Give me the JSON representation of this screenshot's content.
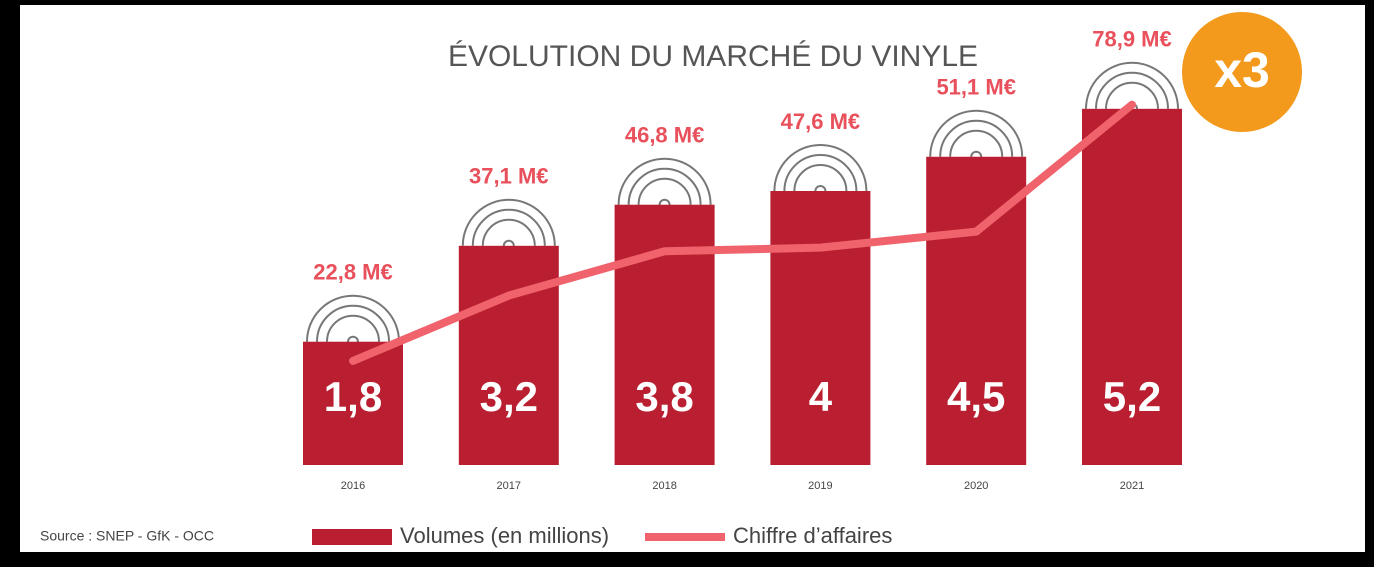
{
  "chart_data": {
    "type": "bar",
    "title": "ÉVOLUTION DU MARCHÉ DU VINYLE",
    "annotation": "x3",
    "source": "Source : SNEP - GfK - OCC",
    "categories": [
      "2016",
      "2017",
      "2018",
      "2019",
      "2020",
      "2021"
    ],
    "series": [
      {
        "name": "Volumes (en millions)",
        "type": "bar",
        "color": "#b91f30",
        "values": [
          1.8,
          3.2,
          3.8,
          4,
          4.5,
          5.2
        ],
        "value_labels": [
          "1,8",
          "3,2",
          "3,8",
          "4",
          "4,5",
          "5,2"
        ]
      },
      {
        "name": "Chiffre d’affaires",
        "type": "line",
        "axis": "y2",
        "color": "#f0636c",
        "values": [
          22.8,
          37.1,
          46.8,
          47.6,
          51.1,
          78.9
        ],
        "value_labels": [
          "22,8 M€",
          "37,1 M€",
          "46,8 M€",
          "47,6 M€",
          "51,1 M€",
          "78,9 M€"
        ]
      }
    ],
    "ylim": [
      0,
      6
    ],
    "y2lim": [
      0,
      90
    ]
  }
}
